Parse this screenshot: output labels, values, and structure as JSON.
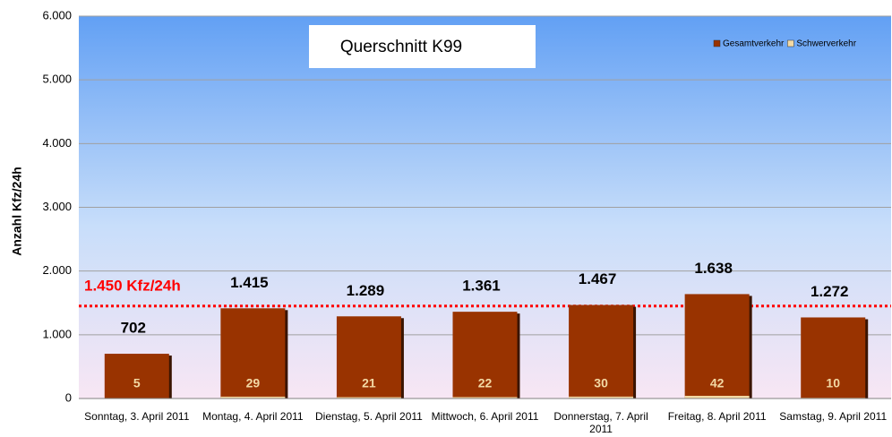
{
  "chart_data": {
    "type": "bar",
    "title": "Querschnitt K99",
    "ylabel": "Anzahl Kfz/24h",
    "categories": [
      "Sonntag, 3. April 2011",
      "Montag, 4. April 2011",
      "Dienstag, 5. April 2011",
      "Mittwoch, 6. April 2011",
      "Donnerstag, 7. April 2011",
      "Freitag, 8. April 2011",
      "Samstag, 9. April 2011"
    ],
    "series": [
      {
        "name": "Gesamtverkehr",
        "color": "#993300",
        "values": [
          702,
          1415,
          1289,
          1361,
          1467,
          1638,
          1272
        ],
        "value_labels": [
          "702",
          "1.415",
          "1.289",
          "1.361",
          "1.467",
          "1.638",
          "1.272"
        ]
      },
      {
        "name": "Schwerverkehr",
        "color": "#f3d9a4",
        "values": [
          5,
          29,
          21,
          22,
          30,
          42,
          10
        ]
      }
    ],
    "ylim": [
      0,
      6000
    ],
    "yticks": [
      0,
      {
        "value": 1000,
        "label": "1.000"
      },
      {
        "value": 2000,
        "label": "2.000"
      },
      {
        "value": 3000,
        "label": "3.000"
      },
      {
        "value": 4000,
        "label": "4.000"
      },
      {
        "value": 5000,
        "label": "5.000"
      },
      {
        "value": 6000,
        "label": "6.000"
      }
    ],
    "grid": true,
    "legend": "upper right",
    "reference_line": {
      "value": 1450,
      "label": "1.450 Kfz/24h",
      "color": "#ff0000"
    }
  }
}
